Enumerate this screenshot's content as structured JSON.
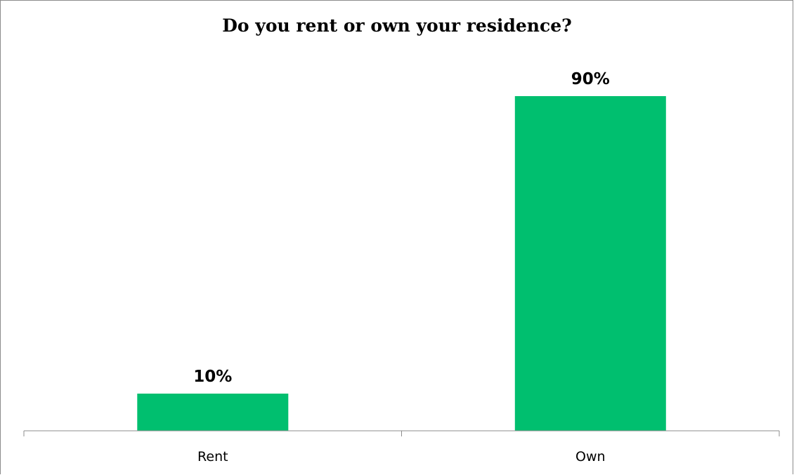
{
  "chart_data": {
    "type": "bar",
    "title": "Do you rent or own your residence?",
    "categories": [
      "Rent",
      "Own"
    ],
    "values": [
      10,
      90
    ],
    "data_labels": [
      "10%",
      "90%"
    ],
    "value_unit": "%",
    "ylim": [
      0,
      100
    ],
    "grid": false,
    "legend": "none",
    "bar_color": "#00BF6F",
    "axis_color": "#8c8c8c"
  }
}
